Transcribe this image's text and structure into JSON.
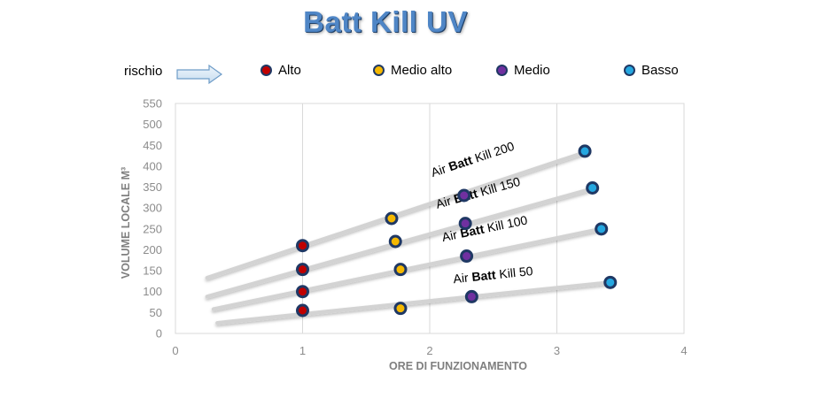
{
  "title": "Batt Kill UV",
  "legend": {
    "label": "rischio",
    "items": [
      {
        "label": "Alto",
        "color": "#c00000"
      },
      {
        "label": "Medio alto",
        "color": "#f5b800"
      },
      {
        "label": "Medio",
        "color": "#7030a0"
      },
      {
        "label": "Basso",
        "color": "#25a7e0"
      }
    ]
  },
  "chart_data": {
    "type": "line",
    "xlabel": "ORE DI FUNZIONAMENTO",
    "ylabel": "VOLUME  LOCALE  M³",
    "xlim": [
      0,
      4
    ],
    "ylim": [
      0,
      550
    ],
    "xticks": [
      "0",
      "1",
      "2",
      "3",
      "4"
    ],
    "yticks": [
      "0",
      "50",
      "100",
      "150",
      "200",
      "250",
      "300",
      "350",
      "400",
      "450",
      "500",
      "550"
    ],
    "grid": "vertical",
    "series": [
      {
        "name": "Air Batt Kill 200",
        "line": [
          [
            0.25,
            133
          ],
          [
            3.25,
            436
          ]
        ],
        "points": [
          {
            "x": 1,
            "y": 210,
            "risk": "Alto"
          },
          {
            "x": 1.7,
            "y": 275,
            "risk": "Medio alto"
          },
          {
            "x": 2.27,
            "y": 330,
            "risk": "Medio"
          },
          {
            "x": 3.22,
            "y": 436,
            "risk": "Basso"
          }
        ]
      },
      {
        "name": "Air Batt Kill 150",
        "line": [
          [
            0.25,
            88
          ],
          [
            3.3,
            348
          ]
        ],
        "points": [
          {
            "x": 1,
            "y": 153,
            "risk": "Alto"
          },
          {
            "x": 1.73,
            "y": 220,
            "risk": "Medio alto"
          },
          {
            "x": 2.28,
            "y": 263,
            "risk": "Medio"
          },
          {
            "x": 3.28,
            "y": 348,
            "risk": "Basso"
          }
        ]
      },
      {
        "name": "Air Batt Kill 100",
        "line": [
          [
            0.3,
            58
          ],
          [
            3.35,
            250
          ]
        ],
        "points": [
          {
            "x": 1,
            "y": 100,
            "risk": "Alto"
          },
          {
            "x": 1.77,
            "y": 153,
            "risk": "Medio alto"
          },
          {
            "x": 2.29,
            "y": 185,
            "risk": "Medio"
          },
          {
            "x": 3.35,
            "y": 250,
            "risk": "Basso"
          }
        ]
      },
      {
        "name": "Air Batt Kill 50",
        "line": [
          [
            0.33,
            25
          ],
          [
            3.42,
            122
          ]
        ],
        "points": [
          {
            "x": 1,
            "y": 55,
            "risk": "Alto"
          },
          {
            "x": 1.77,
            "y": 60,
            "risk": "Medio alto"
          },
          {
            "x": 2.33,
            "y": 88,
            "risk": "Medio"
          },
          {
            "x": 3.42,
            "y": 122,
            "risk": "Basso"
          }
        ]
      }
    ]
  }
}
